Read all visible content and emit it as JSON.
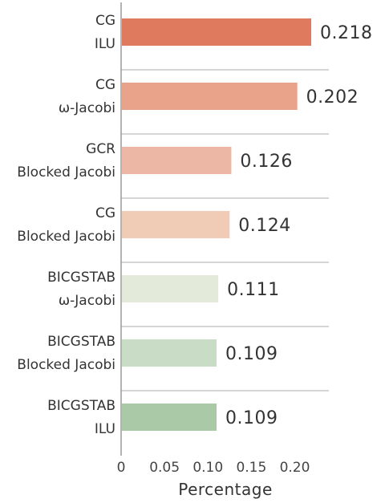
{
  "chart_data": {
    "type": "bar",
    "orientation": "horizontal",
    "categories": [
      [
        "CG",
        "ILU"
      ],
      [
        "CG",
        "ω-Jacobi"
      ],
      [
        "GCR",
        "Blocked Jacobi"
      ],
      [
        "CG",
        "Blocked Jacobi"
      ],
      [
        "BICGSTAB",
        "ω-Jacobi"
      ],
      [
        "BICGSTAB",
        "Blocked Jacobi"
      ],
      [
        "BICGSTAB",
        "ILU"
      ]
    ],
    "values": [
      0.218,
      0.202,
      0.126,
      0.124,
      0.111,
      0.109,
      0.109
    ],
    "value_labels": [
      "0.218",
      "0.202",
      "0.126",
      "0.124",
      "0.111",
      "0.109",
      "0.109"
    ],
    "colors": [
      "#e07a5f",
      "#e8a38a",
      "#ecb7a4",
      "#f0ccb6",
      "#e4ead9",
      "#c9dcc5",
      "#a9c9a7"
    ],
    "xlabel": "Percentage",
    "xlim": [
      0,
      0.24
    ],
    "xticks": [
      0,
      0.05,
      0.1,
      0.15,
      0.2
    ],
    "xtick_labels": [
      "0",
      "0.05",
      "0.10",
      "0.15",
      "0.20"
    ],
    "grid": false
  }
}
